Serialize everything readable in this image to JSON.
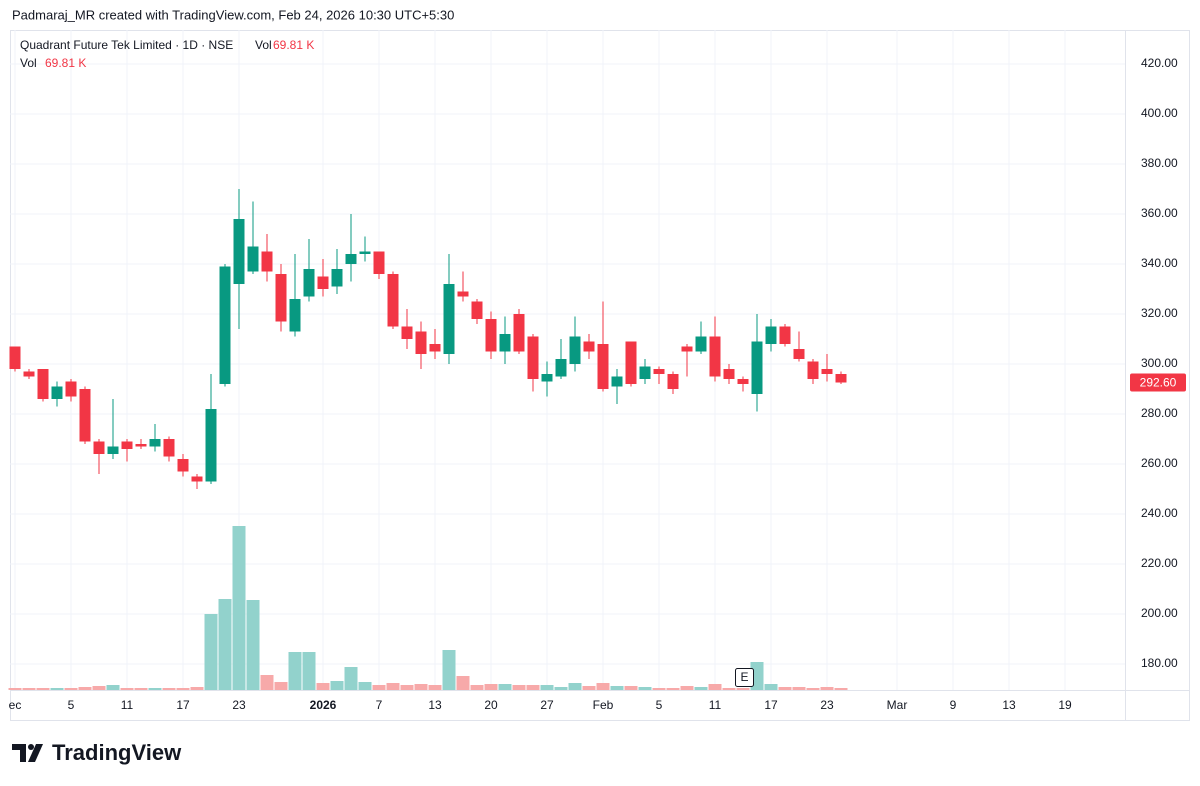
{
  "header": {
    "credit": "Padmaraj_MR created with TradingView.com, Feb 24, 2026 10:30 UTC+5:30"
  },
  "chart_data": {
    "type": "candlestick",
    "title": "Quadrant Future Tek Limited · 1D · NSE",
    "categories": [
      "ec",
      null,
      null,
      null,
      "5",
      null,
      null,
      null,
      "11",
      null,
      null,
      null,
      "17",
      null,
      null,
      null,
      "23",
      null,
      null,
      null,
      null,
      null,
      "2026",
      null,
      null,
      null,
      "7",
      null,
      null,
      null,
      "13",
      null,
      null,
      null,
      "20",
      null,
      null,
      null,
      "27",
      null,
      null,
      null,
      "Feb",
      null,
      null,
      null,
      "5",
      null,
      null,
      null,
      "11",
      null,
      null,
      null,
      "17",
      null,
      null,
      null,
      "23",
      null,
      null,
      null,
      null,
      "Mar",
      null,
      null,
      null,
      "9",
      null,
      null,
      null,
      "13",
      null,
      null,
      null,
      "19",
      null,
      null,
      null,
      null
    ],
    "open": [
      307,
      297,
      298,
      286,
      293,
      290,
      269,
      264,
      269,
      268,
      267,
      270,
      262,
      255,
      253,
      292,
      332,
      337,
      345,
      336,
      313,
      327,
      335,
      331,
      340,
      344,
      345,
      336,
      315,
      313,
      308,
      304,
      329,
      325,
      318,
      305,
      320,
      311,
      293,
      295,
      300,
      309,
      308,
      291,
      309,
      294,
      298,
      296,
      307,
      305,
      311,
      298,
      294,
      288,
      308,
      315,
      306,
      301,
      298,
      296,
      null,
      null,
      null,
      null,
      null,
      null,
      null,
      null,
      null,
      null,
      null,
      null,
      null,
      null,
      null,
      null,
      null,
      null,
      null,
      null
    ],
    "high": [
      307,
      298,
      298,
      293,
      294,
      291,
      270,
      286,
      270,
      270,
      276,
      271,
      264,
      256,
      296,
      340,
      370,
      365,
      352,
      340,
      344,
      350,
      342,
      346,
      360,
      351,
      345,
      337,
      322,
      317,
      314,
      344,
      337,
      326,
      321,
      319,
      322,
      312,
      301,
      310,
      319,
      312,
      325,
      298,
      309,
      302,
      299,
      297,
      308,
      317,
      319,
      300,
      295,
      320,
      318,
      316,
      313,
      302,
      304,
      297,
      null,
      null,
      null,
      null,
      null,
      null,
      null,
      null,
      null,
      null,
      null,
      null,
      null,
      null,
      null,
      null,
      null,
      null,
      null,
      null
    ],
    "low": [
      297,
      294,
      285,
      283,
      285,
      268,
      256,
      262,
      261,
      266,
      265,
      261,
      255,
      250,
      252,
      291,
      314,
      336,
      333,
      313,
      311,
      325,
      327,
      328,
      333,
      341,
      334,
      314,
      306,
      298,
      302,
      300,
      325,
      316,
      302,
      300,
      304,
      289,
      287,
      294,
      297,
      302,
      289,
      284,
      291,
      292,
      292,
      288,
      295,
      304,
      293,
      292,
      289,
      281,
      305,
      307,
      301,
      292,
      293,
      292,
      null,
      null,
      null,
      null,
      null,
      null,
      null,
      null,
      null,
      null,
      null,
      null,
      null,
      null,
      null,
      null,
      null,
      null,
      null,
      null
    ],
    "close": [
      298,
      295,
      286,
      291,
      287,
      269,
      264,
      267,
      266,
      267,
      270,
      263,
      257,
      253,
      282,
      339,
      358,
      347,
      337,
      317,
      326,
      338,
      330,
      338,
      344,
      345,
      336,
      315,
      310,
      304,
      305,
      332,
      327,
      318,
      305,
      312,
      305,
      294,
      296,
      302,
      311,
      305,
      290,
      295,
      292,
      299,
      296,
      290,
      305,
      311,
      295,
      294,
      292,
      309,
      315,
      308,
      302,
      294,
      296,
      292.6,
      null,
      null,
      null,
      null,
      null,
      null,
      null,
      null,
      null,
      null,
      null,
      null,
      null,
      null,
      null,
      null,
      null,
      null,
      null,
      null
    ],
    "volume_name": "Vol",
    "volume": [
      70000,
      70000,
      70000,
      70000,
      70000,
      105000,
      140000,
      175000,
      70000,
      70000,
      70000,
      70000,
      70000,
      105000,
      2660000,
      3185000,
      5740000,
      3150000,
      525000,
      280000,
      1330000,
      1330000,
      245000,
      315000,
      805000,
      280000,
      175000,
      245000,
      175000,
      210000,
      175000,
      1400000,
      490000,
      175000,
      210000,
      210000,
      175000,
      175000,
      175000,
      105000,
      245000,
      140000,
      245000,
      140000,
      140000,
      105000,
      70000,
      70000,
      140000,
      105000,
      210000,
      70000,
      70000,
      980000,
      210000,
      105000,
      105000,
      70000,
      105000,
      69810,
      null,
      null,
      null,
      null,
      null,
      null,
      null,
      null,
      null,
      null,
      null,
      null,
      null,
      null,
      null,
      null,
      null,
      null,
      null,
      null
    ],
    "last_volume_label": "69.81 K",
    "last_close_label": "292.60",
    "earnings_marker": "E",
    "up_color": "#089981",
    "down_color": "#f23645",
    "volume_up_color": "#92d2cc",
    "volume_down_color": "#f7a9a9",
    "ylim": [
      169.6,
      433.6
    ],
    "yticks": [
      {
        "value": 180,
        "label": "180.00"
      },
      {
        "value": 200,
        "label": "200.00"
      },
      {
        "value": 220,
        "label": "220.00"
      },
      {
        "value": 240,
        "label": "240.00"
      },
      {
        "value": 260,
        "label": "260.00"
      },
      {
        "value": 280,
        "label": "280.00"
      },
      {
        "value": 300,
        "label": "300.00"
      },
      {
        "value": 320,
        "label": "320.00"
      },
      {
        "value": 340,
        "label": "340.00"
      },
      {
        "value": 360,
        "label": "360.00"
      },
      {
        "value": 380,
        "label": "380.00"
      },
      {
        "value": 400,
        "label": "400.00"
      },
      {
        "value": 420,
        "label": "420.00"
      }
    ],
    "grid": true
  },
  "footer": {
    "brand": "TradingView"
  }
}
